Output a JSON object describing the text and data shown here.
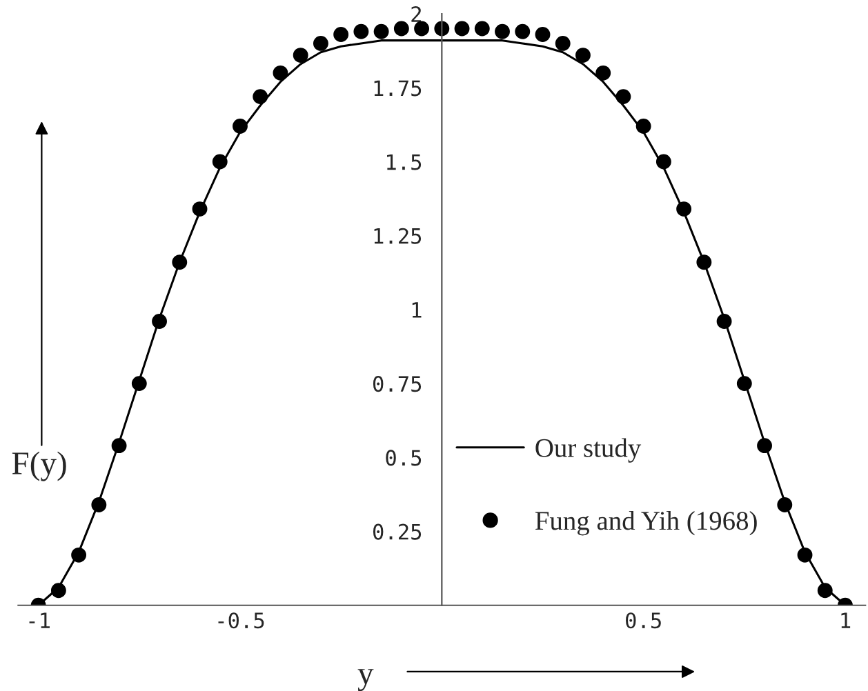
{
  "chart_data": {
    "type": "scatter",
    "xlabel": "y",
    "ylabel": "F(y)",
    "xlim": [
      -1.05,
      1.05
    ],
    "ylim": [
      0,
      2
    ],
    "xticks": [
      -1,
      -0.5,
      0.5,
      1
    ],
    "yticks": [
      0.25,
      0.5,
      0.75,
      1,
      1.25,
      1.5,
      1.75,
      2
    ],
    "legend": "bottom right",
    "grid": false,
    "series": [
      {
        "name": "Our study",
        "type": "line",
        "color": "#000000",
        "line_style": "solid",
        "marker": "none",
        "x": [
          -1,
          -0.95,
          -0.9,
          -0.85,
          -0.8,
          -0.75,
          -0.7,
          -0.65,
          -0.6,
          -0.55,
          -0.5,
          -0.45,
          -0.4,
          -0.35,
          -0.3,
          -0.25,
          -0.2,
          -0.15,
          -0.1,
          -0.05,
          0,
          0.05,
          0.1,
          0.15,
          0.2,
          0.25,
          0.3,
          0.35,
          0.4,
          0.45,
          0.5,
          0.55,
          0.6,
          0.65,
          0.7,
          0.75,
          0.8,
          0.85,
          0.9,
          0.95,
          1
        ],
        "values": [
          0,
          0.06,
          0.18,
          0.35,
          0.55,
          0.76,
          0.97,
          1.16,
          1.33,
          1.48,
          1.6,
          1.69,
          1.77,
          1.83,
          1.87,
          1.89,
          1.9,
          1.91,
          1.91,
          1.91,
          1.91,
          1.91,
          1.91,
          1.91,
          1.9,
          1.89,
          1.87,
          1.83,
          1.77,
          1.69,
          1.6,
          1.48,
          1.33,
          1.16,
          0.97,
          0.76,
          0.55,
          0.35,
          0.18,
          0.06,
          0
        ]
      },
      {
        "name": "Fung and Yih (1968)",
        "color": "#000000",
        "marker": "circle",
        "x": [
          -1,
          -0.95,
          -0.9,
          -0.85,
          -0.8,
          -0.75,
          -0.7,
          -0.65,
          -0.6,
          -0.55,
          -0.5,
          -0.45,
          -0.4,
          -0.35,
          -0.3,
          -0.25,
          -0.2,
          -0.15,
          -0.1,
          -0.05,
          0,
          0.05,
          0.1,
          0.15,
          0.2,
          0.25,
          0.3,
          0.35,
          0.4,
          0.45,
          0.5,
          0.55,
          0.6,
          0.65,
          0.7,
          0.75,
          0.8,
          0.85,
          0.9,
          0.95,
          1
        ],
        "values": [
          0,
          0.05,
          0.17,
          0.34,
          0.54,
          0.75,
          0.96,
          1.16,
          1.34,
          1.5,
          1.62,
          1.72,
          1.8,
          1.86,
          1.9,
          1.93,
          1.94,
          1.94,
          1.95,
          1.95,
          1.95,
          1.95,
          1.95,
          1.94,
          1.94,
          1.93,
          1.9,
          1.86,
          1.8,
          1.72,
          1.62,
          1.5,
          1.34,
          1.16,
          0.96,
          0.75,
          0.54,
          0.34,
          0.17,
          0.05,
          0
        ]
      }
    ]
  }
}
